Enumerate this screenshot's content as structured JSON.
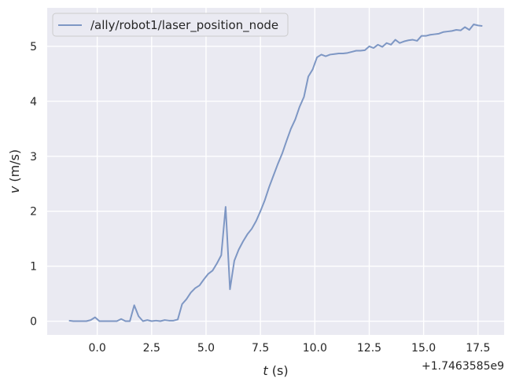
{
  "chart_data": {
    "type": "line",
    "xlabel_var": "t",
    "xlabel_unit": " (s)",
    "ylabel_var": "v",
    "ylabel_unit": " (m/s)",
    "x_offset_text": "+1.7463585e9",
    "xlim": [
      -2.3,
      18.7
    ],
    "ylim": [
      -0.25,
      5.7
    ],
    "xticks": [
      0.0,
      2.5,
      5.0,
      7.5,
      10.0,
      12.5,
      15.0,
      17.5
    ],
    "xtick_labels": [
      "0.0",
      "2.5",
      "5.0",
      "7.5",
      "10.0",
      "12.5",
      "15.0",
      "17.5"
    ],
    "yticks": [
      0,
      1,
      2,
      3,
      4,
      5
    ],
    "ytick_labels": [
      "0",
      "1",
      "2",
      "3",
      "4",
      "5"
    ],
    "grid": true,
    "legend_position": "top-left",
    "colors": {
      "background": "#eaeaf2",
      "grid": "#ffffff",
      "line": "#7e97c4"
    },
    "series": [
      {
        "name": "/ally/robot1/laser_position_node",
        "x": [
          -1.3,
          -1.1,
          -0.9,
          -0.7,
          -0.5,
          -0.3,
          -0.1,
          0.1,
          0.3,
          0.5,
          0.7,
          0.9,
          1.1,
          1.3,
          1.5,
          1.7,
          1.9,
          2.1,
          2.3,
          2.5,
          2.7,
          2.9,
          3.1,
          3.3,
          3.5,
          3.7,
          3.9,
          4.1,
          4.3,
          4.5,
          4.7,
          4.9,
          5.1,
          5.3,
          5.5,
          5.7,
          5.9,
          6.1,
          6.3,
          6.5,
          6.7,
          6.9,
          7.1,
          7.3,
          7.5,
          7.7,
          7.9,
          8.1,
          8.3,
          8.5,
          8.7,
          8.9,
          9.1,
          9.3,
          9.5,
          9.7,
          9.9,
          10.1,
          10.3,
          10.5,
          10.7,
          10.9,
          11.1,
          11.3,
          11.5,
          11.7,
          11.9,
          12.1,
          12.3,
          12.5,
          12.7,
          12.9,
          13.1,
          13.3,
          13.5,
          13.7,
          13.9,
          14.1,
          14.3,
          14.5,
          14.7,
          14.9,
          15.1,
          15.3,
          15.5,
          15.7,
          15.9,
          16.1,
          16.3,
          16.5,
          16.7,
          16.9,
          17.1,
          17.3,
          17.5,
          17.7
        ],
        "y": [
          0.01,
          0.0,
          0.0,
          0.0,
          0.0,
          0.02,
          0.07,
          0.0,
          0.0,
          0.0,
          0.0,
          0.0,
          0.04,
          0.0,
          0.0,
          0.29,
          0.09,
          0.0,
          0.02,
          0.0,
          0.01,
          0.0,
          0.02,
          0.01,
          0.01,
          0.03,
          0.31,
          0.4,
          0.52,
          0.6,
          0.65,
          0.76,
          0.86,
          0.92,
          1.05,
          1.2,
          2.08,
          0.58,
          1.1,
          1.3,
          1.45,
          1.58,
          1.68,
          1.82,
          2.0,
          2.2,
          2.44,
          2.65,
          2.86,
          3.05,
          3.28,
          3.5,
          3.67,
          3.9,
          4.08,
          4.45,
          4.58,
          4.8,
          4.85,
          4.82,
          4.85,
          4.86,
          4.87,
          4.87,
          4.88,
          4.9,
          4.92,
          4.92,
          4.93,
          5.0,
          4.97,
          5.03,
          4.99,
          5.06,
          5.03,
          5.12,
          5.06,
          5.09,
          5.11,
          5.12,
          5.1,
          5.19,
          5.19,
          5.21,
          5.22,
          5.23,
          5.26,
          5.27,
          5.28,
          5.3,
          5.29,
          5.35,
          5.3,
          5.4,
          5.38,
          5.37
        ]
      }
    ]
  }
}
